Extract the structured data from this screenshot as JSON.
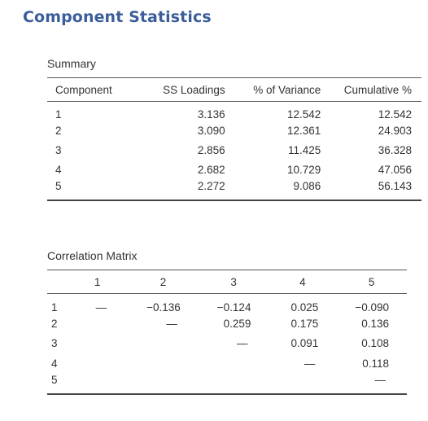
{
  "title": "Component Statistics",
  "summary": {
    "caption": "Summary",
    "headers": [
      "Component",
      "SS Loadings",
      "% of Variance",
      "Cumulative %"
    ],
    "rows": [
      [
        "1",
        "3.136",
        "12.542",
        "12.542"
      ],
      [
        "2",
        "3.090",
        "12.361",
        "24.903"
      ],
      [
        "3",
        "2.856",
        "11.425",
        "36.328"
      ],
      [
        "4",
        "2.682",
        "10.729",
        "47.056"
      ],
      [
        "5",
        "2.272",
        "9.086",
        "56.143"
      ]
    ]
  },
  "correlation": {
    "caption": "Correlation Matrix",
    "col_headers": [
      "",
      "1",
      "2",
      "3",
      "4",
      "5"
    ],
    "rows": [
      [
        "1",
        "—",
        "−0.136",
        "−0.124",
        "0.025",
        "−0.090"
      ],
      [
        "2",
        "",
        "—",
        "0.259",
        "0.175",
        "0.136"
      ],
      [
        "3",
        "",
        "",
        "—",
        "0.091",
        "0.108"
      ],
      [
        "4",
        "",
        "",
        "",
        "—",
        "0.118"
      ],
      [
        "5",
        "",
        "",
        "",
        "",
        "—"
      ]
    ]
  }
}
